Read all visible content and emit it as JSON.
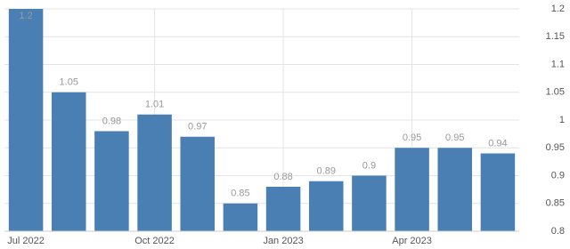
{
  "chart_data": {
    "type": "bar",
    "categories": [
      "Jul 2022",
      null,
      null,
      "Oct 2022",
      null,
      null,
      "Jan 2023",
      null,
      null,
      "Apr 2023",
      null,
      null
    ],
    "values": [
      1.2,
      1.05,
      0.98,
      1.01,
      0.97,
      0.85,
      0.88,
      0.89,
      0.9,
      0.95,
      0.95,
      0.94
    ],
    "color": "#4a7fb3",
    "ylim": [
      0.8,
      1.2
    ],
    "yticks": [
      0.8,
      0.85,
      0.9,
      0.95,
      1,
      1.05,
      1.1,
      1.15,
      1.2
    ],
    "grid": true
  }
}
